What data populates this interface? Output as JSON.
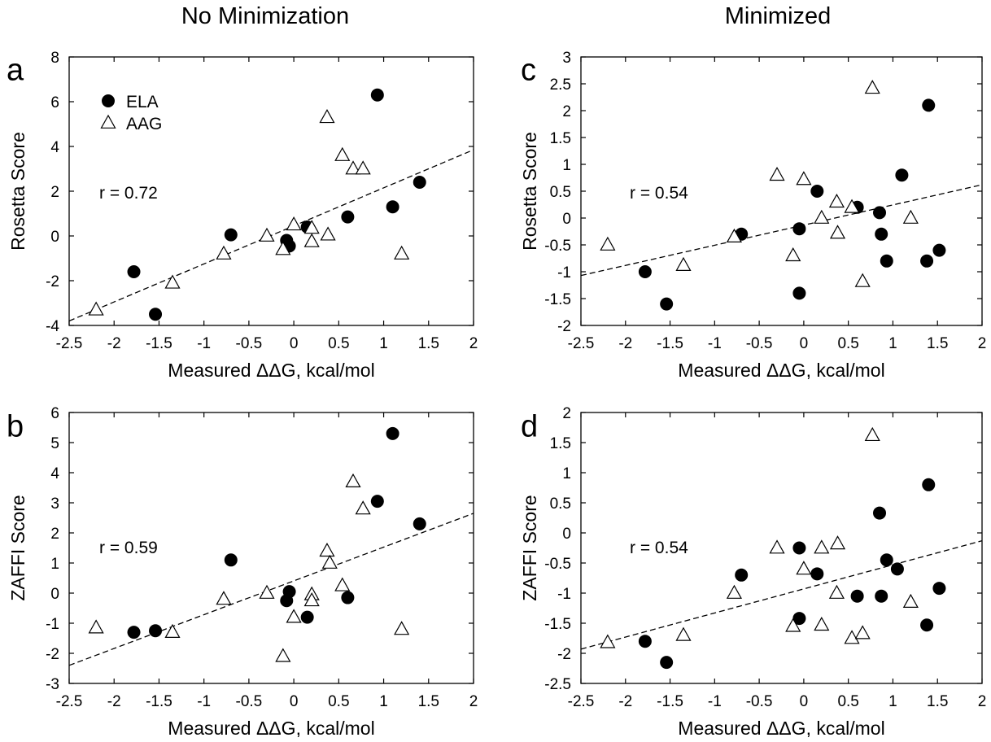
{
  "columns": {
    "left_title": "No Minimization",
    "right_title": "Minimized"
  },
  "legend": [
    {
      "name": "ELA",
      "marker": "filled-circle"
    },
    {
      "name": "AAG",
      "marker": "open-triangle"
    }
  ],
  "colors": {
    "ela": "#000000",
    "aag_fill": "#ffffff",
    "aag_stroke": "#000000",
    "fit_line": "#000000"
  },
  "chart_data": [
    {
      "id": "a",
      "panel_label": "a",
      "type": "scatter",
      "title": "",
      "xlabel": "Measured ΔΔG, kcal/mol",
      "ylabel": "Rosetta Score",
      "xlim": [
        -2.5,
        2
      ],
      "ylim": [
        -4,
        8
      ],
      "xticks": [
        -2.5,
        -2,
        -1.5,
        -1,
        -0.5,
        0,
        0.5,
        1,
        1.5,
        2
      ],
      "yticks": [
        -4,
        -2,
        0,
        2,
        4,
        6,
        8
      ],
      "annotation": "r = 0.72",
      "show_legend": true,
      "legend_position": "top-left",
      "grid": false,
      "fit_line": {
        "x": [
          -2.5,
          2
        ],
        "y": [
          -3.8,
          3.85
        ]
      },
      "series": [
        {
          "name": "ELA",
          "marker": "filled-circle",
          "x": [
            0.93,
            -1.78,
            -1.54,
            -0.7,
            -0.08,
            -0.05,
            0.15,
            0.6,
            1.1,
            1.4
          ],
          "y": [
            6.3,
            -1.6,
            -3.5,
            0.05,
            -0.2,
            -0.45,
            0.4,
            0.85,
            1.3,
            2.4
          ]
        },
        {
          "name": "AAG",
          "marker": "open-triangle",
          "x": [
            -2.2,
            -1.35,
            -0.78,
            -0.3,
            -0.12,
            0.0,
            0.2,
            0.2,
            0.37,
            0.38,
            0.54,
            0.66,
            0.77,
            1.2
          ],
          "y": [
            -3.3,
            -2.1,
            -0.8,
            0.0,
            -0.6,
            0.5,
            0.35,
            -0.25,
            5.3,
            0.05,
            3.6,
            3.0,
            3.0,
            -0.8
          ]
        }
      ]
    },
    {
      "id": "b",
      "panel_label": "b",
      "type": "scatter",
      "title": "",
      "xlabel": "Measured ΔΔG, kcal/mol",
      "ylabel": "ZAFFI Score",
      "xlim": [
        -2.5,
        2
      ],
      "ylim": [
        -3,
        6
      ],
      "xticks": [
        -2.5,
        -2,
        -1.5,
        -1,
        -0.5,
        0,
        0.5,
        1,
        1.5,
        2
      ],
      "yticks": [
        -3,
        -2,
        -1,
        0,
        1,
        2,
        3,
        4,
        5,
        6
      ],
      "annotation": "r = 0.59",
      "show_legend": false,
      "grid": false,
      "fit_line": {
        "x": [
          -2.5,
          2
        ],
        "y": [
          -2.4,
          2.65
        ]
      },
      "series": [
        {
          "name": "ELA",
          "marker": "filled-circle",
          "x": [
            1.1,
            0.93,
            1.4,
            -0.7,
            -0.05,
            -0.08,
            0.6,
            0.15,
            -1.78,
            -1.54
          ],
          "y": [
            5.3,
            3.05,
            2.3,
            1.1,
            0.05,
            -0.25,
            -0.15,
            -0.8,
            -1.3,
            -1.25
          ]
        },
        {
          "name": "AAG",
          "marker": "open-triangle",
          "x": [
            0.66,
            0.77,
            0.37,
            0.4,
            0.54,
            -0.78,
            -0.3,
            0.0,
            0.2,
            0.2,
            -0.12,
            1.2,
            -1.35,
            -2.2
          ],
          "y": [
            3.7,
            2.8,
            1.4,
            1.0,
            0.25,
            -0.2,
            0.0,
            -0.8,
            -0.05,
            -0.25,
            -2.1,
            -1.2,
            -1.3,
            -1.15
          ]
        }
      ]
    },
    {
      "id": "c",
      "panel_label": "c",
      "type": "scatter",
      "title": "",
      "xlabel": "Measured ΔΔG, kcal/mol",
      "ylabel": "Rosetta Score",
      "xlim": [
        -2.5,
        2
      ],
      "ylim": [
        -2,
        3
      ],
      "xticks": [
        -2.5,
        -2,
        -1.5,
        -1,
        -0.5,
        0,
        0.5,
        1,
        1.5,
        2
      ],
      "yticks": [
        -2,
        -1.5,
        -1,
        -0.5,
        0,
        0.5,
        1,
        1.5,
        2,
        2.5,
        3
      ],
      "annotation": "r = 0.54",
      "show_legend": false,
      "grid": false,
      "fit_line": {
        "x": [
          -2.5,
          2
        ],
        "y": [
          -1.07,
          0.62
        ]
      },
      "series": [
        {
          "name": "ELA",
          "marker": "filled-circle",
          "x": [
            1.4,
            1.1,
            0.15,
            0.6,
            0.85,
            -0.05,
            -0.7,
            -1.78,
            0.87,
            0.93,
            1.38,
            1.52,
            -0.05,
            -1.54
          ],
          "y": [
            2.1,
            0.8,
            0.5,
            0.2,
            0.1,
            -0.2,
            -0.3,
            -1.0,
            -0.3,
            -0.8,
            -0.8,
            -0.6,
            -1.4,
            -1.6
          ]
        },
        {
          "name": "AAG",
          "marker": "open-triangle",
          "x": [
            0.77,
            -0.3,
            0.0,
            0.37,
            0.54,
            0.2,
            1.2,
            -0.78,
            0.38,
            -0.12,
            -2.2,
            -1.35,
            0.66
          ],
          "y": [
            2.42,
            0.8,
            0.72,
            0.3,
            0.2,
            0.0,
            0.0,
            -0.35,
            -0.28,
            -0.7,
            -0.5,
            -0.88,
            -1.18
          ]
        }
      ]
    },
    {
      "id": "d",
      "panel_label": "d",
      "type": "scatter",
      "title": "",
      "xlabel": "Measured ΔΔG, kcal/mol",
      "ylabel": "ZAFFI Score",
      "xlim": [
        -2.5,
        2
      ],
      "ylim": [
        -2.5,
        2
      ],
      "xticks": [
        -2.5,
        -2,
        -1.5,
        -1,
        -0.5,
        0,
        0.5,
        1,
        1.5,
        2
      ],
      "yticks": [
        -2.5,
        -2,
        -1.5,
        -1,
        -0.5,
        0,
        0.5,
        1,
        1.5,
        2
      ],
      "annotation": "r = 0.54",
      "show_legend": false,
      "grid": false,
      "fit_line": {
        "x": [
          -2.5,
          2
        ],
        "y": [
          -1.93,
          -0.13
        ]
      },
      "series": [
        {
          "name": "ELA",
          "marker": "filled-circle",
          "x": [
            1.4,
            0.85,
            -0.05,
            0.93,
            1.05,
            -0.7,
            0.15,
            0.6,
            0.87,
            1.52,
            -0.05,
            1.38,
            -1.78,
            -1.54
          ],
          "y": [
            0.8,
            0.33,
            -0.25,
            -0.45,
            -0.6,
            -0.7,
            -0.68,
            -1.05,
            -1.05,
            -0.92,
            -1.42,
            -1.53,
            -1.8,
            -2.15
          ]
        },
        {
          "name": "AAG",
          "marker": "open-triangle",
          "x": [
            0.77,
            -0.3,
            0.2,
            0.38,
            0.0,
            -0.78,
            0.37,
            1.2,
            -0.12,
            0.2,
            0.54,
            0.66,
            -1.35,
            -2.2
          ],
          "y": [
            1.62,
            -0.25,
            -0.25,
            -0.18,
            -0.6,
            -1.0,
            -1.0,
            -1.15,
            -1.55,
            -1.53,
            -1.75,
            -1.67,
            -1.7,
            -1.82
          ]
        }
      ]
    }
  ]
}
